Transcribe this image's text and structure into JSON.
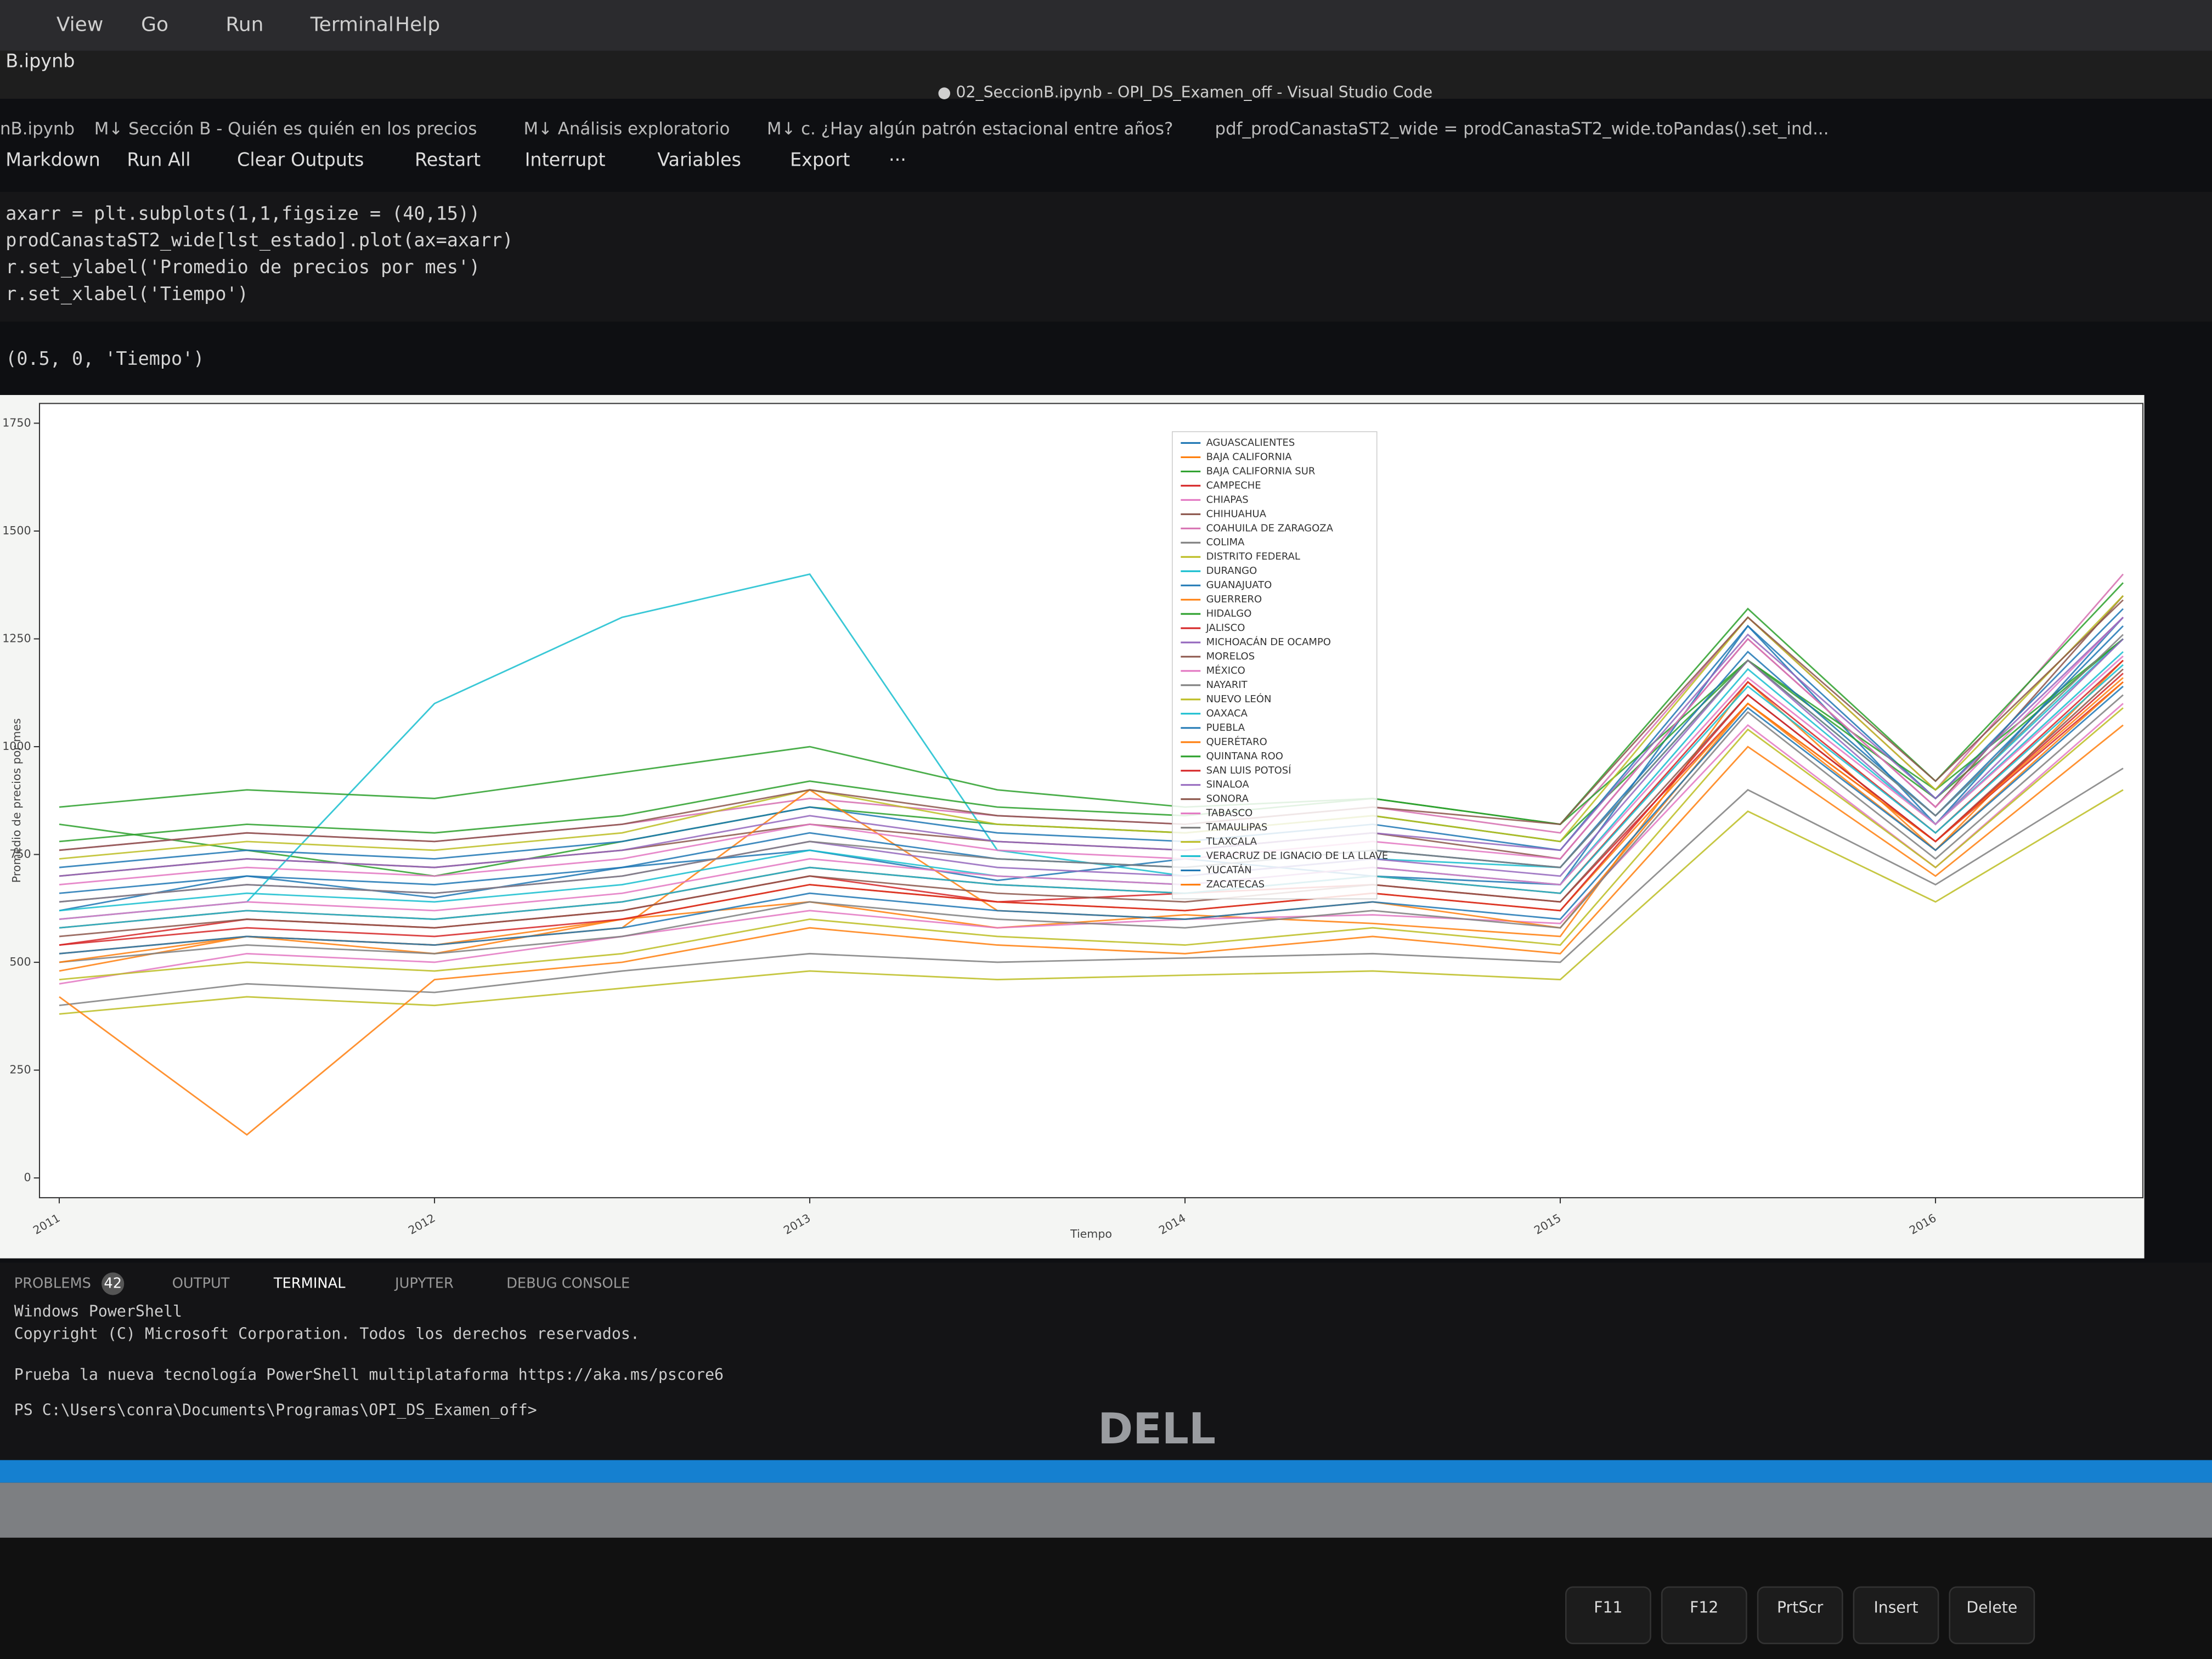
{
  "menu": [
    "View",
    "Go",
    "Run",
    "Terminal",
    "Help"
  ],
  "tab": "B.ipynb",
  "window_title": "● 02_SeccionB.ipynb - OPI_DS_Examen_off - Visual Studio Code",
  "breadcrumb": [
    "nB.ipynb",
    "M↓ Sección B - Quién es quién en los precios",
    "M↓ Análisis exploratorio",
    "M↓ c. ¿Hay algún patrón estacional entre años?",
    "pdf_prodCanastaST2_wide = prodCanastaST2_wide.toPandas().set_ind..."
  ],
  "toolbar": [
    "Markdown",
    "Run All",
    "Clear Outputs",
    "Restart",
    "Interrupt",
    "Variables",
    "Export",
    "···"
  ],
  "code": [
    "axarr = plt.subplots(1,1,figsize = (40,15))",
    "prodCanastaST2_wide[lst_estado].plot(ax=axarr)",
    "r.set_ylabel('Promedio de precios por mes')",
    "r.set_xlabel('Tiempo')"
  ],
  "output": "(0.5, 0, 'Tiempo')",
  "chart_data": {
    "type": "line",
    "xlabel": "Tiempo",
    "ylabel": "Promedio de precios por mes",
    "x": [
      2011,
      2011.5,
      2012,
      2012.5,
      2013,
      2013.5,
      2014,
      2014.5,
      2015,
      2015.5,
      2016,
      2016.5
    ],
    "xlim": [
      2011,
      2016.5
    ],
    "xticks": [
      2011,
      2012,
      2013,
      2014,
      2015,
      2016
    ],
    "ylim": [
      0,
      1750
    ],
    "yticks": [
      0,
      250,
      500,
      750,
      1000,
      1250,
      1500,
      1750
    ],
    "legend": "upper center",
    "series": [
      {
        "name": "AGUASCALIENTES",
        "color": "#1f77b4",
        "values": [
          620,
          700,
          650,
          720,
          760,
          690,
          740,
          700,
          680,
          1280,
          820,
          1300
        ]
      },
      {
        "name": "BAJA CALIFORNIA",
        "color": "#ff7f0e",
        "values": [
          480,
          560,
          520,
          600,
          640,
          580,
          610,
          590,
          560,
          1150,
          760,
          1200
        ]
      },
      {
        "name": "BAJA CALIFORNIA SUR",
        "color": "#2ca02c",
        "values": [
          820,
          760,
          700,
          780,
          860,
          820,
          800,
          840,
          780,
          1200,
          880,
          1250
        ]
      },
      {
        "name": "CAMPECHE",
        "color": "#d62728",
        "values": [
          540,
          600,
          580,
          620,
          700,
          640,
          660,
          680,
          640,
          1100,
          780,
          1150
        ]
      },
      {
        "name": "CHIAPAS",
        "color": "#e377c2",
        "values": [
          450,
          520,
          500,
          560,
          620,
          580,
          600,
          610,
          590,
          1050,
          720,
          1100
        ]
      },
      {
        "name": "CHIHUAHUA",
        "color": "#8c564b",
        "values": [
          700,
          740,
          720,
          760,
          820,
          780,
          760,
          800,
          740,
          1250,
          860,
          1350
        ]
      },
      {
        "name": "COAHUILA DE ZARAGOZA",
        "color": "#d66fb0",
        "values": [
          760,
          800,
          780,
          820,
          880,
          840,
          820,
          860,
          800,
          1300,
          900,
          1400
        ]
      },
      {
        "name": "COLIMA",
        "color": "#7f7f7f",
        "values": [
          400,
          450,
          430,
          480,
          520,
          500,
          510,
          520,
          500,
          900,
          680,
          950
        ]
      },
      {
        "name": "DISTRITO FEDERAL",
        "color": "#bcbd22",
        "values": [
          380,
          420,
          400,
          440,
          480,
          460,
          470,
          480,
          460,
          850,
          640,
          900
        ]
      },
      {
        "name": "DURANGO",
        "color": "#17becf",
        "values": [
          600,
          640,
          1100,
          1300,
          1400,
          760,
          700,
          740,
          720,
          1200,
          840,
          1250
        ]
      },
      {
        "name": "GUANAJUATO",
        "color": "#1f77b4",
        "values": [
          720,
          760,
          740,
          780,
          860,
          800,
          780,
          820,
          760,
          1280,
          880,
          1320
        ]
      },
      {
        "name": "GUERRERO",
        "color": "#ff7f0e",
        "values": [
          520,
          560,
          540,
          580,
          900,
          620,
          600,
          640,
          580,
          1100,
          760,
          1150
        ]
      },
      {
        "name": "HIDALGO",
        "color": "#2ca02c",
        "values": [
          860,
          900,
          880,
          940,
          1000,
          900,
          860,
          880,
          820,
          1200,
          900,
          1250
        ]
      },
      {
        "name": "JALISCO",
        "color": "#d62728",
        "values": [
          580,
          620,
          600,
          640,
          720,
          680,
          660,
          700,
          660,
          1150,
          800,
          1200
        ]
      },
      {
        "name": "MICHOACÁN DE OCAMPO",
        "color": "#9467bd",
        "values": [
          640,
          680,
          660,
          700,
          780,
          720,
          700,
          740,
          700,
          1200,
          820,
          1250
        ]
      },
      {
        "name": "MORELOS",
        "color": "#8c564b",
        "values": [
          560,
          600,
          580,
          620,
          700,
          660,
          640,
          680,
          640,
          1120,
          780,
          1180
        ]
      },
      {
        "name": "MÉXICO",
        "color": "#e377c2",
        "values": [
          680,
          720,
          700,
          740,
          820,
          760,
          740,
          780,
          740,
          1250,
          860,
          1300
        ]
      },
      {
        "name": "NAYARIT",
        "color": "#7f7f7f",
        "values": [
          500,
          540,
          520,
          560,
          640,
          600,
          580,
          620,
          580,
          1080,
          740,
          1120
        ]
      },
      {
        "name": "NUEVO LEÓN",
        "color": "#bcbd22",
        "values": [
          740,
          780,
          760,
          800,
          900,
          820,
          800,
          840,
          780,
          1300,
          900,
          1350
        ]
      },
      {
        "name": "OAXACA",
        "color": "#17becf",
        "values": [
          620,
          660,
          640,
          680,
          760,
          700,
          680,
          720,
          680,
          1180,
          820,
          1220
        ]
      },
      {
        "name": "PUEBLA",
        "color": "#1f77b4",
        "values": [
          660,
          700,
          680,
          720,
          800,
          740,
          720,
          760,
          720,
          1220,
          840,
          1280
        ]
      },
      {
        "name": "QUERÉTARO",
        "color": "#ff7f0e",
        "values": [
          500,
          560,
          540,
          600,
          680,
          640,
          620,
          660,
          620,
          1100,
          780,
          1160
        ]
      },
      {
        "name": "QUINTANA ROO",
        "color": "#2ca02c",
        "values": [
          780,
          820,
          800,
          840,
          920,
          860,
          840,
          880,
          820,
          1320,
          920,
          1380
        ]
      },
      {
        "name": "SAN LUIS POTOSÍ",
        "color": "#d62728",
        "values": [
          540,
          580,
          560,
          600,
          680,
          640,
          620,
          660,
          620,
          1120,
          780,
          1170
        ]
      },
      {
        "name": "SINALOA",
        "color": "#9467bd",
        "values": [
          700,
          740,
          720,
          760,
          840,
          780,
          760,
          800,
          760,
          1260,
          880,
          1300
        ]
      },
      {
        "name": "SONORA",
        "color": "#8c564b",
        "values": [
          760,
          800,
          780,
          820,
          900,
          840,
          820,
          860,
          820,
          1300,
          920,
          1340
        ]
      },
      {
        "name": "TABASCO",
        "color": "#e377c2",
        "values": [
          600,
          640,
          620,
          660,
          740,
          700,
          680,
          720,
          680,
          1160,
          820,
          1210
        ]
      },
      {
        "name": "TAMAULIPAS",
        "color": "#7f7f7f",
        "values": [
          640,
          680,
          660,
          700,
          780,
          740,
          720,
          760,
          720,
          1200,
          840,
          1260
        ]
      },
      {
        "name": "TLAXCALA",
        "color": "#bcbd22",
        "values": [
          460,
          500,
          480,
          520,
          600,
          560,
          540,
          580,
          540,
          1040,
          720,
          1090
        ]
      },
      {
        "name": "VERACRUZ DE IGNACIO DE LA LLAVE",
        "color": "#17becf",
        "values": [
          580,
          620,
          600,
          640,
          720,
          680,
          660,
          700,
          660,
          1140,
          800,
          1190
        ]
      },
      {
        "name": "YUCATÁN",
        "color": "#1f77b4",
        "values": [
          520,
          560,
          540,
          580,
          660,
          620,
          600,
          640,
          600,
          1090,
          760,
          1140
        ]
      },
      {
        "name": "ZACATECAS",
        "color": "#ff7f0e",
        "values": [
          420,
          100,
          460,
          500,
          580,
          540,
          520,
          560,
          520,
          1000,
          700,
          1050
        ]
      }
    ]
  },
  "panel": {
    "tabs": [
      "PROBLEMS",
      "OUTPUT",
      "TERMINAL",
      "JUPYTER",
      "DEBUG CONSOLE"
    ],
    "problems_count": 42,
    "terminal": [
      "Windows PowerShell",
      "Copyright (C) Microsoft Corporation. Todos los derechos reservados.",
      "Prueba la nueva tecnología PowerShell multiplataforma https://aka.ms/pscore6",
      "PS C:\\Users\\conra\\Documents\\Programas\\OPI_DS_Examen_off>"
    ]
  },
  "laptop": {
    "brand": "DELL",
    "keys": [
      "F11",
      "F12",
      "PrtScr",
      "Insert",
      "Delete"
    ]
  }
}
